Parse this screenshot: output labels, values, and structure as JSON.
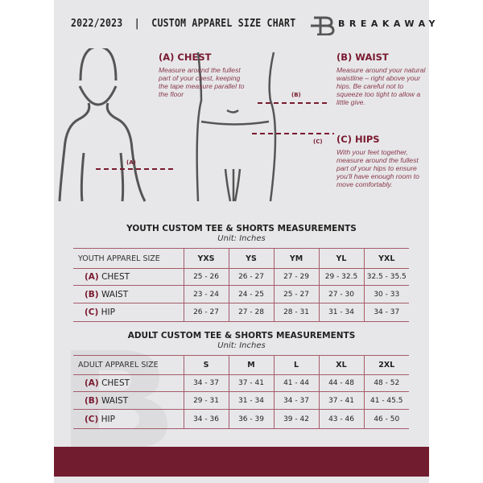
{
  "header": {
    "title": "2022/2023  |  CUSTOM APPAREL SIZE CHART",
    "brand": "BREAKAWAY"
  },
  "measure": {
    "chest": {
      "heading": "(A) CHEST",
      "marker": "(A)",
      "text": "Measure around the fullest part of your chest, keeping the tape measure parallel to the floor"
    },
    "waist": {
      "heading": "(B) WAIST",
      "marker": "(B)",
      "text": "Measure around your natural waistline – right above your hips. Be careful not to squeeze too tight to allow a little give."
    },
    "hips": {
      "heading": "(C) HIPS",
      "marker": "(C)",
      "text": "With your feet together, measure around the fullest part of your hips to ensure you'll have enough room to move comfortably."
    }
  },
  "youth": {
    "title": "YOUTH CUSTOM TEE & SHORTS MEASUREMENTS",
    "unit": "Unit: Inches",
    "header": [
      "YOUTH APPAREL SIZE",
      "YXS",
      "YS",
      "YM",
      "YL",
      "YXL"
    ],
    "rows": [
      {
        "letter": "(A)",
        "label": "CHEST",
        "values": [
          "25 - 26",
          "26 - 27",
          "27 - 29",
          "29 - 32.5",
          "32.5 - 35.5"
        ]
      },
      {
        "letter": "(B)",
        "label": "WAIST",
        "values": [
          "23 - 24",
          "24 - 25",
          "25 - 27",
          "27 - 30",
          "30 - 33"
        ]
      },
      {
        "letter": "(C)",
        "label": "HIP",
        "values": [
          "26 - 27",
          "27 - 28",
          "28 - 31",
          "31 - 34",
          "34 - 37"
        ]
      }
    ]
  },
  "adult": {
    "title": "ADULT CUSTOM TEE & SHORTS MEASUREMENTS",
    "unit": "Unit: Inches",
    "header": [
      "ADULT APPAREL SIZE",
      "S",
      "M",
      "L",
      "XL",
      "2XL"
    ],
    "rows": [
      {
        "letter": "(A)",
        "label": "CHEST",
        "values": [
          "34 - 37",
          "37 - 41",
          "41 - 44",
          "44 - 48",
          "48 - 52"
        ]
      },
      {
        "letter": "(B)",
        "label": "WAIST",
        "values": [
          "29 - 31",
          "31 - 34",
          "34 - 37",
          "37 - 41",
          "41 - 45.5"
        ]
      },
      {
        "letter": "(C)",
        "label": "HIP",
        "values": [
          "34 - 36",
          "36 - 39",
          "39 - 42",
          "43 - 46",
          "46 - 50"
        ]
      }
    ]
  },
  "colors": {
    "accent": "#721c30",
    "background": "#e7e7e9"
  }
}
